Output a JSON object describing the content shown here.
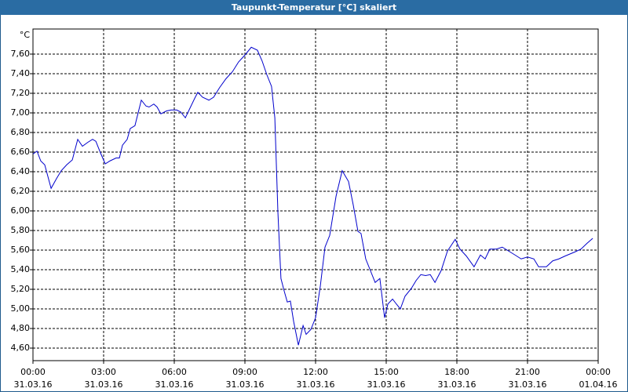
{
  "chart_data": {
    "type": "line",
    "title": "Taupunkt-Temperatur [°C] skaliert",
    "y_unit": "°C",
    "grid": true,
    "xlim": [
      0,
      24
    ],
    "ylim": [
      4.472,
      7.856
    ],
    "xticks": [
      {
        "value": 0,
        "label": "00:00",
        "date": "31.03.16"
      },
      {
        "value": 3,
        "label": "03:00",
        "date": "31.03.16"
      },
      {
        "value": 6,
        "label": "06:00",
        "date": "31.03.16"
      },
      {
        "value": 9,
        "label": "09:00",
        "date": "31.03.16"
      },
      {
        "value": 12,
        "label": "12:00",
        "date": "31.03.16"
      },
      {
        "value": 15,
        "label": "15:00",
        "date": "31.03.16"
      },
      {
        "value": 18,
        "label": "18:00",
        "date": "31.03.16"
      },
      {
        "value": 21,
        "label": "21:00",
        "date": "31.03.16"
      },
      {
        "value": 24,
        "label": "00:00",
        "date": "01.04.16"
      }
    ],
    "yticks": [
      {
        "value": 4.6,
        "label": "4,60"
      },
      {
        "value": 4.8,
        "label": "4,80"
      },
      {
        "value": 5.0,
        "label": "5,00"
      },
      {
        "value": 5.2,
        "label": "5,20"
      },
      {
        "value": 5.4,
        "label": "5,40"
      },
      {
        "value": 5.6,
        "label": "5,60"
      },
      {
        "value": 5.8,
        "label": "5,80"
      },
      {
        "value": 6.0,
        "label": "6,00"
      },
      {
        "value": 6.2,
        "label": "6,20"
      },
      {
        "value": 6.4,
        "label": "6,40"
      },
      {
        "value": 6.6,
        "label": "6,60"
      },
      {
        "value": 6.8,
        "label": "6,80"
      },
      {
        "value": 7.0,
        "label": "7,00"
      },
      {
        "value": 7.2,
        "label": "7,20"
      },
      {
        "value": 7.4,
        "label": "7,40"
      },
      {
        "value": 7.6,
        "label": "7,60"
      }
    ],
    "series": [
      {
        "color": "#0000cc",
        "x": [
          0,
          0.17,
          0.33,
          0.5,
          0.77,
          1,
          1.2,
          1.43,
          1.67,
          1.9,
          2.1,
          2.33,
          2.53,
          2.67,
          2.87,
          3.07,
          3.27,
          3.53,
          3.67,
          3.8,
          4,
          4.13,
          4.33,
          4.6,
          4.8,
          4.93,
          5.13,
          5.27,
          5.43,
          5.67,
          5.87,
          6.1,
          6.27,
          6.47,
          6.67,
          6.87,
          7,
          7.2,
          7.47,
          7.67,
          7.93,
          8.2,
          8.47,
          8.73,
          9,
          9.27,
          9.53,
          9.73,
          9.93,
          10.13,
          10.27,
          10.4,
          10.53,
          10.67,
          10.8,
          10.93,
          11.07,
          11.27,
          11.47,
          11.6,
          11.8,
          12,
          12.2,
          12.4,
          12.6,
          12.87,
          13.13,
          13.4,
          13.6,
          13.8,
          13.93,
          14.13,
          14.33,
          14.53,
          14.73,
          14.93,
          15.07,
          15.27,
          15.43,
          15.6,
          15.8,
          16.07,
          16.27,
          16.47,
          16.67,
          16.87,
          17.07,
          17.33,
          17.6,
          17.93,
          18.13,
          18.4,
          18.73,
          19,
          19.2,
          19.4,
          19.67,
          19.93,
          20.2,
          20.47,
          20.73,
          21,
          21.27,
          21.47,
          21.8,
          22.07,
          22.33,
          22.6,
          23,
          23.27,
          23.53,
          23.77
        ],
        "values": [
          6.58,
          6.61,
          6.51,
          6.47,
          6.23,
          6.33,
          6.41,
          6.47,
          6.52,
          6.73,
          6.66,
          6.7,
          6.73,
          6.71,
          6.59,
          6.48,
          6.51,
          6.54,
          6.54,
          6.67,
          6.73,
          6.84,
          6.87,
          7.13,
          7.07,
          7.06,
          7.09,
          7.06,
          6.99,
          7.02,
          7.03,
          7.03,
          7.01,
          6.95,
          7.05,
          7.15,
          7.21,
          7.16,
          7.13,
          7.16,
          7.26,
          7.35,
          7.42,
          7.52,
          7.59,
          7.67,
          7.64,
          7.53,
          7.39,
          7.27,
          6.95,
          5.99,
          5.31,
          5.18,
          5.07,
          5.08,
          4.87,
          4.63,
          4.83,
          4.74,
          4.79,
          4.91,
          5.23,
          5.63,
          5.75,
          6.15,
          6.41,
          6.3,
          6.06,
          5.79,
          5.77,
          5.51,
          5.39,
          5.27,
          5.31,
          4.91,
          5.05,
          5.1,
          5.05,
          5.0,
          5.13,
          5.21,
          5.29,
          5.35,
          5.34,
          5.35,
          5.27,
          5.39,
          5.59,
          5.71,
          5.61,
          5.54,
          5.43,
          5.55,
          5.51,
          5.61,
          5.61,
          5.63,
          5.59,
          5.55,
          5.51,
          5.53,
          5.51,
          5.43,
          5.43,
          5.49,
          5.51,
          5.54,
          5.58,
          5.61,
          5.67,
          5.72
        ]
      }
    ]
  }
}
